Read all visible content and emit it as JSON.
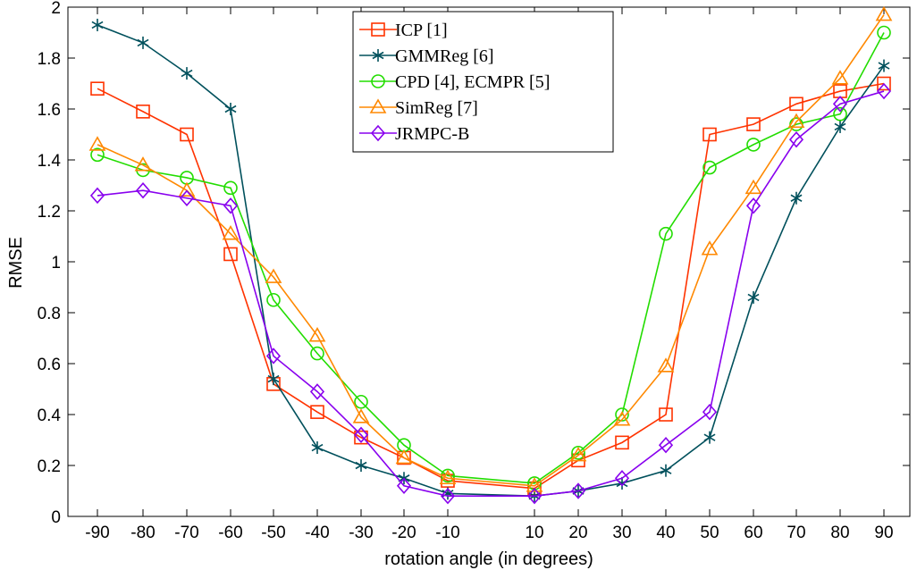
{
  "chart_data": {
    "type": "line",
    "title": "",
    "xlabel": "rotation angle (in degrees)",
    "ylabel": "RMSE",
    "x": [
      -90,
      -80,
      -70,
      -60,
      -50,
      -40,
      -30,
      -20,
      -10,
      10,
      20,
      30,
      40,
      50,
      60,
      70,
      80,
      90
    ],
    "xtick_labels": [
      "-90",
      "-80",
      "-70",
      "-60",
      "-50",
      "-40",
      "-30",
      "-20",
      "-10",
      "10",
      "20",
      "30",
      "40",
      "50",
      "60",
      "70",
      "80",
      "90"
    ],
    "yticks": [
      0,
      0.2,
      0.4,
      0.6,
      0.8,
      1,
      1.2,
      1.4,
      1.6,
      1.8,
      2
    ],
    "ytick_labels": [
      "0",
      "0.2",
      "0.4",
      "0.6",
      "0.8",
      "1",
      "1.2",
      "1.4",
      "1.6",
      "1.8",
      "2"
    ],
    "ylim": [
      0,
      2
    ],
    "grid": false,
    "legend_position": "top-center",
    "series": [
      {
        "name": "ICP [1]",
        "color": "#ff3300",
        "marker": "square",
        "values": [
          1.68,
          1.59,
          1.5,
          1.03,
          0.52,
          0.41,
          0.31,
          0.23,
          0.14,
          0.11,
          0.22,
          0.29,
          0.4,
          1.5,
          1.54,
          1.62,
          1.67,
          1.7
        ]
      },
      {
        "name": "GMMReg [6]",
        "color": "#00505c",
        "marker": "star",
        "values": [
          1.93,
          1.86,
          1.74,
          1.6,
          0.54,
          0.27,
          0.2,
          0.15,
          0.09,
          0.08,
          0.1,
          0.13,
          0.18,
          0.31,
          0.86,
          1.25,
          1.53,
          1.77
        ]
      },
      {
        "name": "CPD [4], ECMPR [5]",
        "color": "#22dd00",
        "marker": "circle",
        "values": [
          1.42,
          1.36,
          1.33,
          1.29,
          0.85,
          0.64,
          0.45,
          0.28,
          0.16,
          0.13,
          0.25,
          0.4,
          1.11,
          1.37,
          1.46,
          1.54,
          1.58,
          1.9
        ]
      },
      {
        "name": "SimReg [7]",
        "color": "#ff8800",
        "marker": "triangle",
        "values": [
          1.46,
          1.38,
          1.28,
          1.11,
          0.94,
          0.71,
          0.39,
          0.23,
          0.15,
          0.12,
          0.24,
          0.38,
          0.59,
          1.05,
          1.29,
          1.55,
          1.72,
          1.97
        ]
      },
      {
        "name": "JRMPC-B",
        "color": "#8800ee",
        "marker": "diamond",
        "values": [
          1.26,
          1.28,
          1.25,
          1.22,
          0.63,
          0.49,
          0.32,
          0.12,
          0.08,
          0.08,
          0.1,
          0.15,
          0.28,
          0.41,
          1.22,
          1.48,
          1.62,
          1.67
        ]
      }
    ]
  }
}
